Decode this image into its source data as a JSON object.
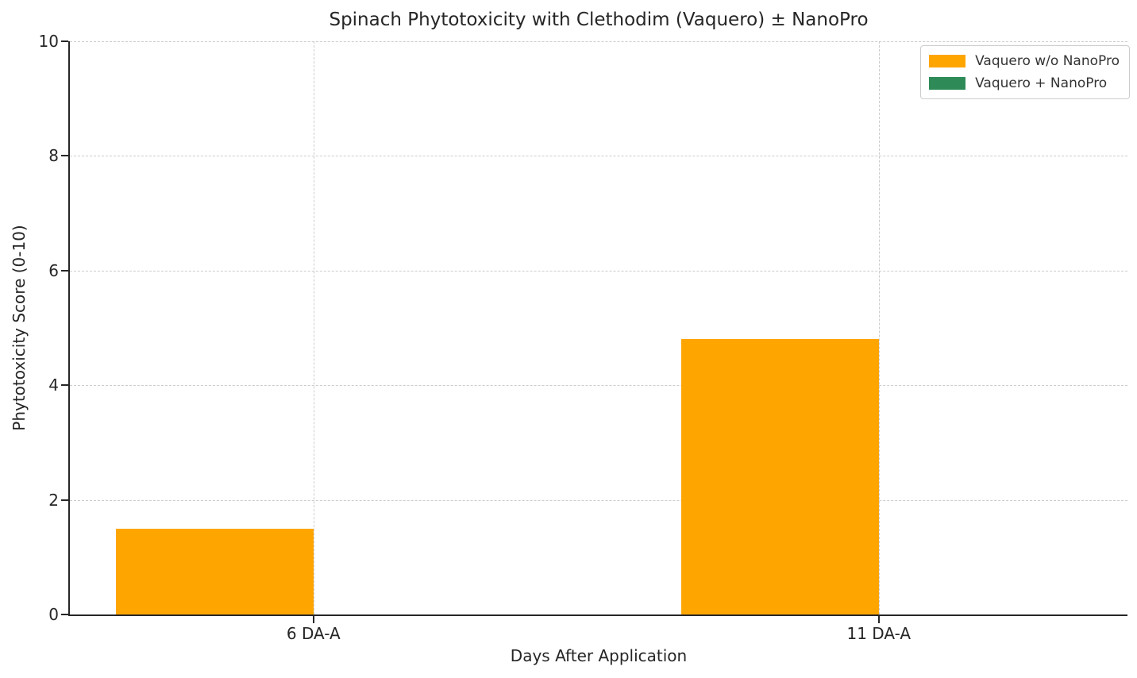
{
  "title": "Spinach Phytotoxicity with Clethodim (Vaquero) ± NanoPro",
  "chart_data": {
    "type": "bar",
    "title": "Spinach Phytotoxicity with Clethodim (Vaquero) ± NanoPro",
    "xlabel": "Days After Application",
    "ylabel": "Phytotoxicity Score (0-10)",
    "categories": [
      "6 DA-A",
      "11 DA-A"
    ],
    "series": [
      {
        "name": "Vaquero w/o NanoPro",
        "color": "#FFA500",
        "values": [
          1.5,
          4.8
        ]
      },
      {
        "name": "Vaquero + NanoPro",
        "color": "#2E8B57",
        "values": [
          0.0,
          0.0
        ]
      }
    ],
    "ylim": [
      0,
      10
    ],
    "yticks": [
      0,
      2,
      4,
      6,
      8,
      10
    ],
    "xlim": [
      -0.431,
      1.44
    ],
    "bar_width": 0.35,
    "grid": "dashed-both-axes",
    "gridline_color": "#cccccc",
    "legend_position": "upper right"
  }
}
